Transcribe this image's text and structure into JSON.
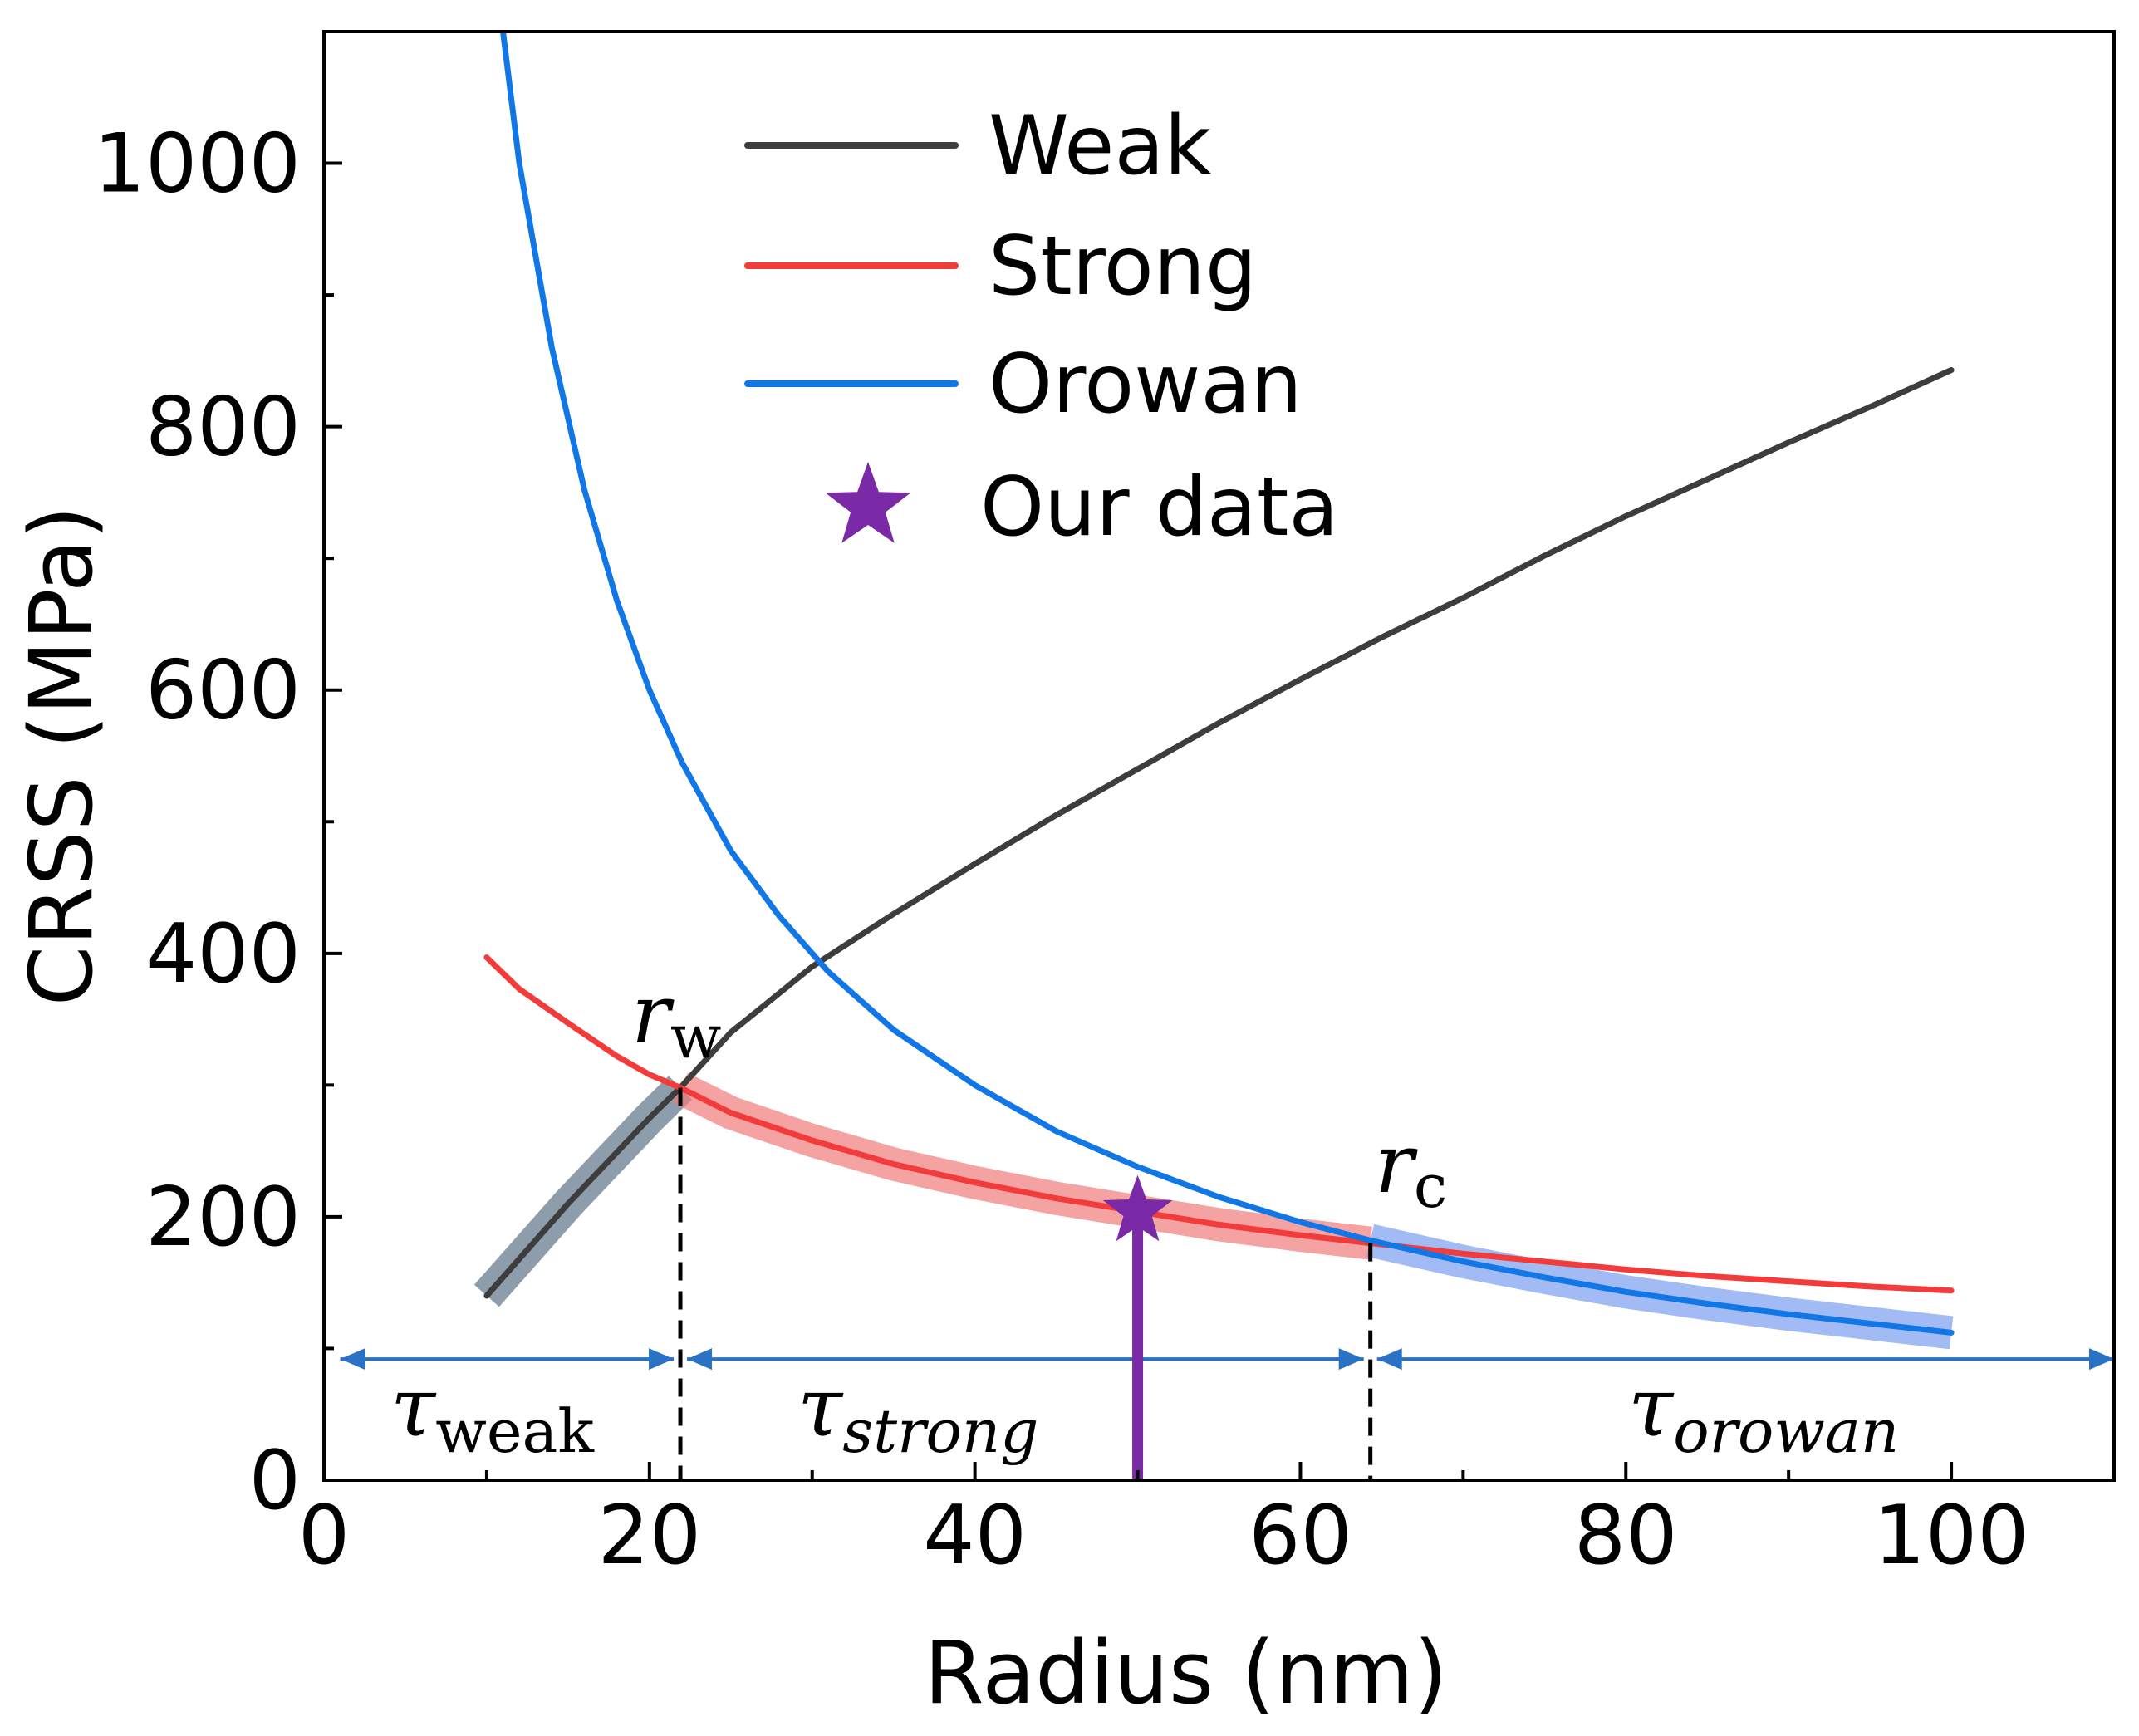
{
  "chart_data": {
    "type": "line",
    "title": "",
    "xlabel": "Radius (nm)",
    "ylabel": "CRSS (MPa)",
    "xlim": [
      0,
      110
    ],
    "ylim": [
      0,
      1100
    ],
    "x_ticks": [
      0,
      20,
      40,
      60,
      80,
      100
    ],
    "y_ticks": [
      0,
      200,
      400,
      600,
      800,
      1000
    ],
    "grid": false,
    "legend_position": "top-center",
    "series": [
      {
        "name": "Weak",
        "color": "#3d3d3d",
        "x": [
          10,
          15,
          20,
          21.9,
          25,
          30,
          35,
          40,
          45,
          50,
          55,
          60,
          65,
          70,
          75,
          80,
          85,
          90,
          95,
          100
        ],
        "y": [
          140,
          210,
          275,
          298,
          340,
          390,
          430,
          468,
          505,
          540,
          575,
          608,
          640,
          670,
          702,
          732,
          760,
          788,
          815,
          843
        ],
        "highlight_range": [
          10,
          21.9
        ],
        "highlight_color": "#5e7488"
      },
      {
        "name": "Strong",
        "color": "#f23b3b",
        "x": [
          10,
          12,
          15,
          18,
          20,
          21.9,
          25,
          30,
          35,
          40,
          45,
          50,
          55,
          60,
          64.3,
          70,
          75,
          80,
          85,
          90,
          95,
          100
        ],
        "y": [
          397,
          373,
          347,
          322,
          308,
          298,
          279,
          258,
          240,
          226,
          214,
          204,
          194,
          186,
          180,
          172,
          166,
          160,
          155,
          151,
          147,
          144
        ],
        "highlight_range": [
          21.9,
          64.3
        ],
        "highlight_color": "#f07a7a"
      },
      {
        "name": "Orowan",
        "color": "#1277e6",
        "x": [
          11,
          12,
          14,
          16,
          18,
          20,
          22,
          25,
          28,
          31,
          35,
          40,
          45,
          50,
          55,
          60,
          64.3,
          70,
          75,
          80,
          85,
          90,
          95,
          100
        ],
        "y": [
          1100,
          1000,
          860,
          752,
          668,
          600,
          545,
          478,
          428,
          386,
          342,
          300,
          265,
          238,
          215,
          196,
          182,
          166,
          154,
          143,
          134,
          126,
          119,
          112
        ],
        "highlight_range": [
          64.3,
          100
        ],
        "highlight_color": "#7a9ef0"
      }
    ],
    "markers": [
      {
        "name": "Our data",
        "x": 50,
        "y": 204,
        "shape": "star",
        "color": "#7a2aa6"
      }
    ],
    "vertical_lines": [
      {
        "x": 21.9,
        "style": "dashed",
        "label": "r",
        "label_sub": "w"
      },
      {
        "x": 64.3,
        "style": "dashed",
        "label": "r",
        "label_sub": "c"
      }
    ],
    "arrow_line": {
      "x": 50,
      "y_from": 0,
      "y_to": 204,
      "color": "#7a2aa6"
    },
    "regions": [
      {
        "label": "τ",
        "label_sub": "weak",
        "x_from": 1,
        "x_to": 21.9
      },
      {
        "label": "τ",
        "label_sub": "strong",
        "x_from": 21.9,
        "x_to": 64.3
      },
      {
        "label": "τ",
        "label_sub": "orowan",
        "x_from": 64.3,
        "x_to": 110
      }
    ],
    "region_arrow_y": 92,
    "region_arrow_color": "#2a72c4",
    "legend": [
      "Weak",
      "Strong",
      "Orowan",
      "Our data"
    ]
  }
}
